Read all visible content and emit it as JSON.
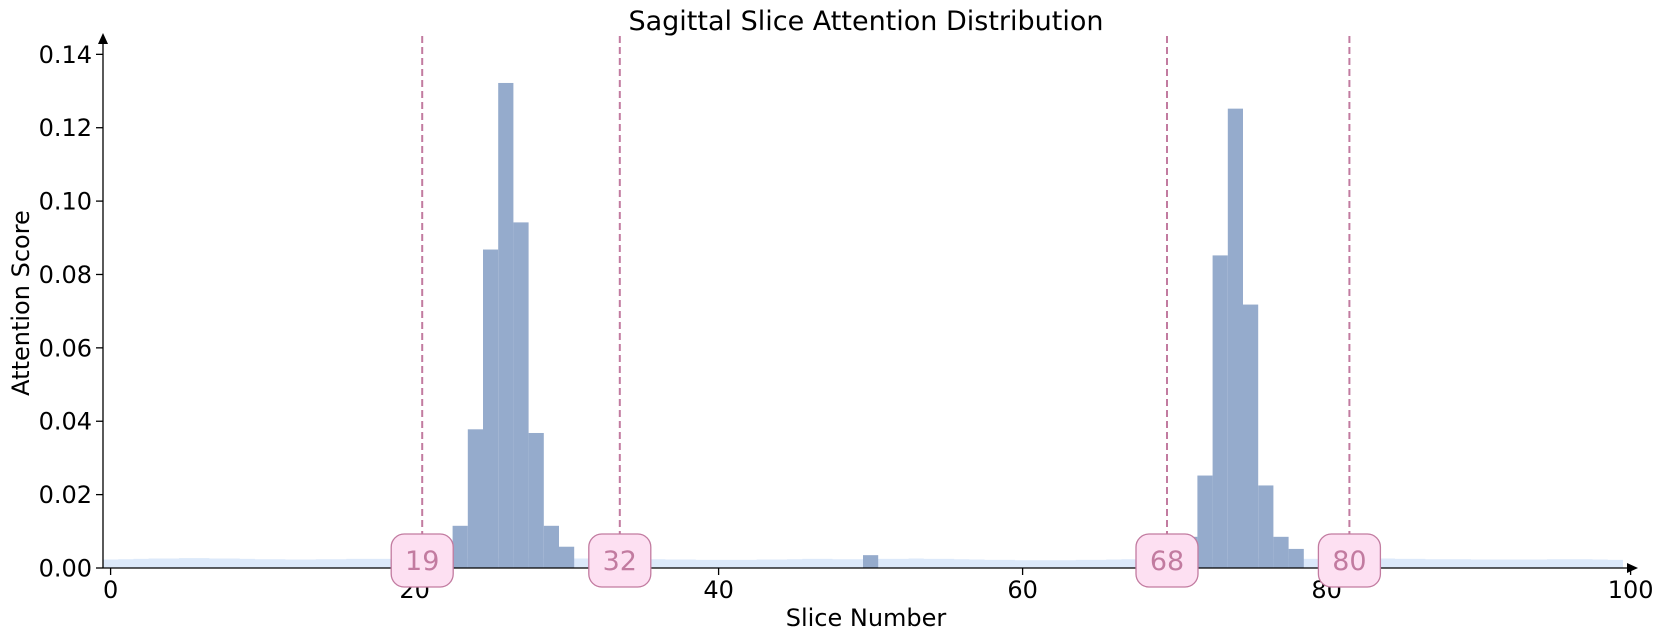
{
  "chart_data": {
    "type": "bar",
    "title": "Sagittal Slice Attention Distribution",
    "xlabel": "Slice Number",
    "ylabel": "Attention Score",
    "xlim": [
      -0.5,
      99.5
    ],
    "ylim": [
      0,
      0.145
    ],
    "xticks": [
      0,
      20,
      40,
      60,
      80,
      100
    ],
    "yticks": [
      0.0,
      0.02,
      0.04,
      0.06,
      0.08,
      0.1,
      0.12,
      0.14
    ],
    "grid": false,
    "colors": {
      "background_fill": "#dce9fa",
      "bars": "#95abcc",
      "marker_line": "#c27ba0",
      "marker_text": "#c27ba0",
      "marker_box_fill": "#fde0f2",
      "marker_box_edge": "#c27ba0"
    },
    "baseline_values": [
      0.0023,
      0.0024,
      0.0025,
      0.0026,
      0.0026,
      0.0027,
      0.0027,
      0.0026,
      0.0026,
      0.0025,
      0.0024,
      0.0024,
      0.0023,
      0.0023,
      0.0024,
      0.0024,
      0.0025,
      0.0025,
      0.0025,
      0.0026,
      0.0026,
      0.0026,
      0.0026,
      0.0026,
      0.0026,
      0.0026,
      0.0026,
      0.0026,
      0.0026,
      0.0026,
      0.0026,
      0.0026,
      0.0026,
      0.0026,
      0.0025,
      0.0025,
      0.0024,
      0.0023,
      0.0023,
      0.0022,
      0.0022,
      0.0022,
      0.0022,
      0.0023,
      0.0023,
      0.0024,
      0.0025,
      0.0025,
      0.0024,
      0.0024,
      0.0024,
      0.0025,
      0.0025,
      0.0026,
      0.0025,
      0.0025,
      0.0024,
      0.0023,
      0.0022,
      0.0022,
      0.0021,
      0.0021,
      0.0021,
      0.0021,
      0.0022,
      0.0022,
      0.0023,
      0.0024,
      0.0024,
      0.0025,
      0.0025,
      0.0025,
      0.0025,
      0.0025,
      0.0025,
      0.0025,
      0.0025,
      0.0025,
      0.0025,
      0.0025,
      0.0025,
      0.0026,
      0.0026,
      0.0026,
      0.0026,
      0.0025,
      0.0025,
      0.0024,
      0.0024,
      0.0024,
      0.0023,
      0.0023,
      0.0023,
      0.0023,
      0.0023,
      0.0024,
      0.0024,
      0.0024,
      0.0023,
      0.0022
    ],
    "bars": [
      {
        "x": 22,
        "value": 0.0055
      },
      {
        "x": 23,
        "value": 0.0115
      },
      {
        "x": 24,
        "value": 0.0378
      },
      {
        "x": 25,
        "value": 0.0868
      },
      {
        "x": 26,
        "value": 0.1322
      },
      {
        "x": 27,
        "value": 0.0942
      },
      {
        "x": 28,
        "value": 0.0368
      },
      {
        "x": 29,
        "value": 0.0115
      },
      {
        "x": 30,
        "value": 0.0058
      },
      {
        "x": 50,
        "value": 0.0035
      },
      {
        "x": 71,
        "value": 0.0085
      },
      {
        "x": 72,
        "value": 0.0252
      },
      {
        "x": 73,
        "value": 0.0852
      },
      {
        "x": 74,
        "value": 0.1252
      },
      {
        "x": 75,
        "value": 0.0718
      },
      {
        "x": 76,
        "value": 0.0225
      },
      {
        "x": 77,
        "value": 0.0085
      },
      {
        "x": 78,
        "value": 0.0052
      }
    ],
    "markers": [
      {
        "x": 20.5,
        "label": "19"
      },
      {
        "x": 33.5,
        "label": "32"
      },
      {
        "x": 69.5,
        "label": "68"
      },
      {
        "x": 81.5,
        "label": "80"
      }
    ]
  }
}
